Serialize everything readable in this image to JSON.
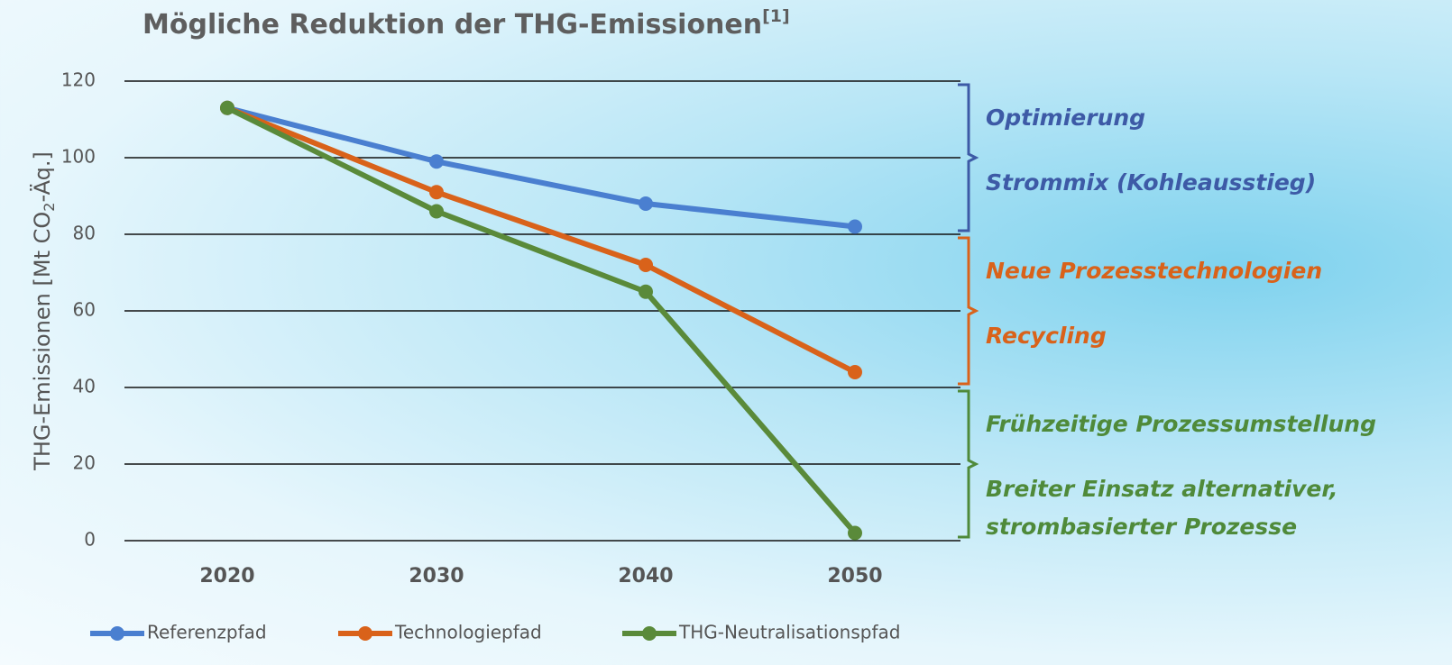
{
  "chart_data": {
    "type": "line",
    "title": "Mögliche Reduktion der THG-Emissionen",
    "title_note": "[1]",
    "ylabel_parts": [
      "THG-Emissionen [Mt CO",
      "2",
      "-Äq.]"
    ],
    "categories": [
      "2020",
      "2030",
      "2040",
      "2050"
    ],
    "series": [
      {
        "name": "Referenzpfad",
        "color": "#4a7fd0",
        "values": [
          113,
          99,
          88,
          82
        ]
      },
      {
        "name": "Technologiepfad",
        "color": "#d9621a",
        "values": [
          113,
          91,
          72,
          44
        ]
      },
      {
        "name": "THG-Neutralisationspfad",
        "color": "#5a8a3a",
        "values": [
          113,
          86,
          65,
          2
        ]
      }
    ],
    "ylim": [
      0,
      120
    ],
    "yticks": [
      0,
      20,
      40,
      60,
      80,
      100,
      120
    ],
    "grid": true,
    "legend": "bottom",
    "annotations": [
      {
        "range": [
          80,
          120
        ],
        "color": "#3d5aa6",
        "lines": [
          "Optimierung",
          "Strommix (Kohleausstieg)"
        ]
      },
      {
        "range": [
          40,
          80
        ],
        "color": "#d9621a",
        "lines": [
          "Neue Prozesstechnologien",
          "Recycling"
        ]
      },
      {
        "range": [
          0,
          40
        ],
        "color": "#4f8a3a",
        "lines": [
          "Frühzeitige Prozessumstellung",
          "Breiter Einsatz alternativer,",
          "strombasierter Prozesse"
        ]
      }
    ]
  }
}
